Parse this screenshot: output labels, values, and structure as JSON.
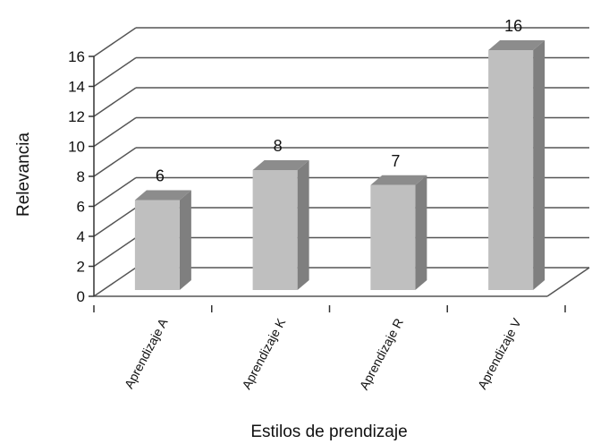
{
  "chart_data": {
    "type": "bar",
    "categories": [
      "Aprendizaje A",
      "Aprendizaje K",
      "Aprendizaje R",
      "Aprendizaje V"
    ],
    "values": [
      6,
      8,
      7,
      16
    ],
    "data_labels": [
      "6",
      "8",
      "7",
      "16"
    ],
    "xlabel": "Estilos de prendizaje",
    "ylabel": "Relevancia",
    "ylim": [
      0,
      16
    ],
    "yticks": [
      0,
      2,
      4,
      6,
      8,
      10,
      12,
      14,
      16
    ],
    "grid": true,
    "style": "3d",
    "colors": {
      "bar_front": "#bfbfbf",
      "bar_side": "#7f7f7f",
      "bar_top": "#8c8c8c",
      "grid": "#555555",
      "axis": "#333333"
    }
  }
}
